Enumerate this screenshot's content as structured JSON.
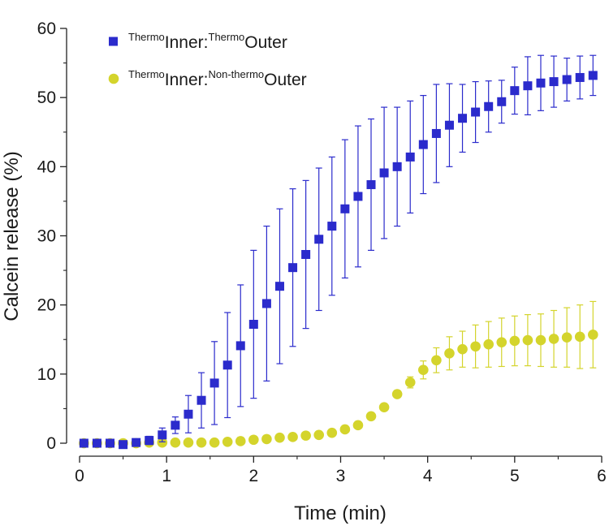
{
  "chart_data": {
    "type": "scatter",
    "title": "",
    "xlabel": "Time (min)",
    "ylabel": "Calcein release (%)",
    "xlim": [
      0,
      6
    ],
    "ylim": [
      0,
      60
    ],
    "xticks": [
      0,
      1,
      2,
      3,
      4,
      5,
      6
    ],
    "yticks": [
      0,
      10,
      20,
      30,
      40,
      50,
      60
    ],
    "grid": false,
    "legend_position": "top-left",
    "series": [
      {
        "name": "ThermoInner:ThermoOuter",
        "legend": {
          "sup1": "Thermo",
          "main1": "Inner:",
          "sup2": "Thermo",
          "main2": "Outer"
        },
        "marker": "square",
        "color": "#2b2bcc",
        "x": [
          0.05,
          0.2,
          0.35,
          0.5,
          0.65,
          0.8,
          0.95,
          1.1,
          1.25,
          1.4,
          1.55,
          1.7,
          1.85,
          2.0,
          2.15,
          2.3,
          2.45,
          2.6,
          2.75,
          2.9,
          3.05,
          3.2,
          3.35,
          3.5,
          3.65,
          3.8,
          3.95,
          4.1,
          4.25,
          4.4,
          4.55,
          4.7,
          4.85,
          5.0,
          5.15,
          5.3,
          5.45,
          5.6,
          5.75,
          5.9
        ],
        "y": [
          0.0,
          0.0,
          0.0,
          -0.2,
          0.1,
          0.4,
          1.2,
          2.6,
          4.2,
          6.2,
          8.7,
          11.3,
          14.1,
          17.2,
          20.2,
          22.7,
          25.4,
          27.3,
          29.5,
          31.4,
          33.9,
          35.7,
          37.4,
          39.1,
          40.0,
          41.4,
          43.2,
          44.8,
          46.0,
          47.0,
          47.9,
          48.7,
          49.4,
          51.0,
          51.7,
          52.1,
          52.3,
          52.6,
          52.9,
          53.2
        ],
        "err": [
          0.3,
          0.3,
          0.3,
          0.4,
          0.4,
          0.6,
          1.0,
          1.2,
          2.7,
          4.0,
          6.0,
          7.6,
          8.8,
          10.7,
          11.2,
          11.2,
          11.4,
          10.7,
          10.3,
          10.0,
          10.0,
          10.2,
          9.5,
          9.5,
          8.6,
          8.1,
          7.1,
          7.1,
          6.0,
          4.9,
          4.4,
          3.7,
          3.1,
          3.4,
          4.2,
          4.0,
          3.7,
          3.1,
          3.1,
          2.9
        ]
      },
      {
        "name": "ThermoInner:Non-thermoOuter",
        "legend": {
          "sup1": "Thermo",
          "main1": "Inner:",
          "sup2": "Non-thermo",
          "main2": "Outer"
        },
        "marker": "circle",
        "color": "#d4d42c",
        "x": [
          0.05,
          0.2,
          0.35,
          0.5,
          0.65,
          0.8,
          0.95,
          1.1,
          1.25,
          1.4,
          1.55,
          1.7,
          1.85,
          2.0,
          2.15,
          2.3,
          2.45,
          2.6,
          2.75,
          2.9,
          3.05,
          3.2,
          3.35,
          3.5,
          3.65,
          3.8,
          3.95,
          4.1,
          4.25,
          4.4,
          4.55,
          4.7,
          4.85,
          5.0,
          5.15,
          5.3,
          5.45,
          5.6,
          5.75,
          5.9
        ],
        "y": [
          0.0,
          0.0,
          0.0,
          0.0,
          0.0,
          0.1,
          0.1,
          0.1,
          0.1,
          0.1,
          0.1,
          0.2,
          0.3,
          0.5,
          0.6,
          0.8,
          0.9,
          1.1,
          1.2,
          1.5,
          2.0,
          2.6,
          3.9,
          5.2,
          7.1,
          8.8,
          10.6,
          12.0,
          13.0,
          13.6,
          14.0,
          14.3,
          14.6,
          14.8,
          14.9,
          14.9,
          15.1,
          15.3,
          15.4,
          15.7
        ],
        "err": [
          0.2,
          0.2,
          0.2,
          0.2,
          0.2,
          0.2,
          0.2,
          0.2,
          0.2,
          0.2,
          0.2,
          0.2,
          0.2,
          0.2,
          0.2,
          0.2,
          0.3,
          0.3,
          0.3,
          0.3,
          0.3,
          0.3,
          0.4,
          0.5,
          0.5,
          0.8,
          1.3,
          1.8,
          2.4,
          2.6,
          3.1,
          3.3,
          3.5,
          3.6,
          3.7,
          3.8,
          4.1,
          4.3,
          4.6,
          4.8
        ]
      }
    ]
  }
}
